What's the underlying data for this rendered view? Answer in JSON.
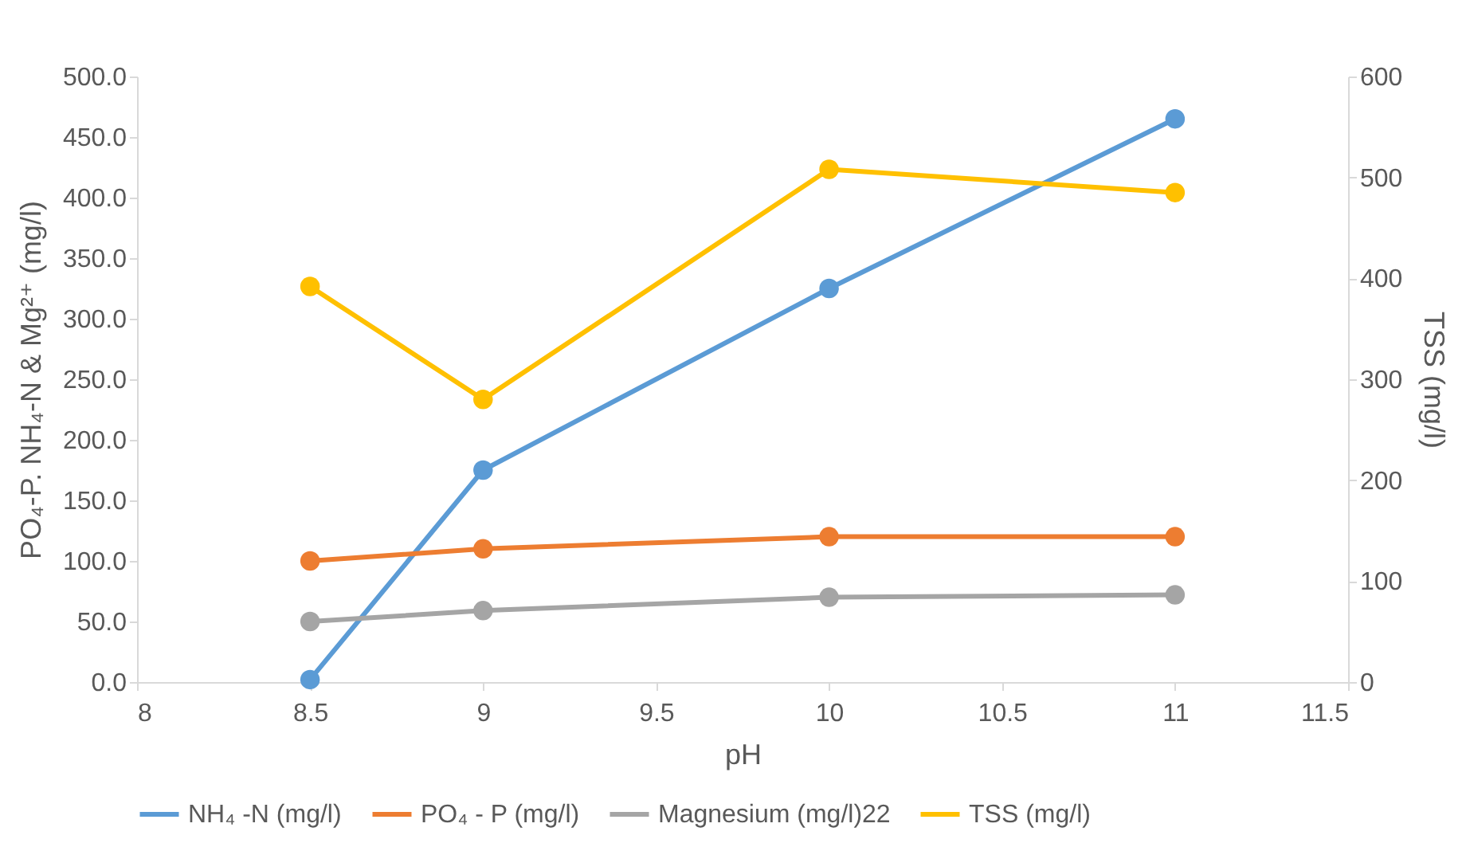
{
  "chart_data": {
    "type": "line",
    "xlabel": "pH",
    "ylabel": "PO₄-P. NH₄-N & Mg²⁺ (mg/l)",
    "y2label": "TSS (mg/l)",
    "x": [
      8.5,
      9,
      10,
      11
    ],
    "series": [
      {
        "name": "NH₄ -N (mg/l)",
        "color": "#5b9bd5",
        "values": [
          2,
          175,
          325,
          465
        ]
      },
      {
        "name": "PO₄ - P (mg/l)",
        "color": "#ed7d31",
        "values": [
          100,
          110,
          120,
          120
        ]
      },
      {
        "name": "Magnesium (mg/l)22",
        "color": "#a5a5a5",
        "values": [
          50,
          59,
          70,
          72
        ]
      },
      {
        "name": "TSS (mg/l)",
        "color": "#ffc000",
        "values": [
          392,
          280,
          508,
          485
        ],
        "axis": "y2"
      }
    ],
    "xlim": [
      8,
      11.5
    ],
    "xticks": [
      8,
      8.5,
      9,
      9.5,
      10,
      10.5,
      11,
      11.5
    ],
    "ylim": [
      0,
      500
    ],
    "yticks": [
      {
        "value": 0,
        "label": "0.0"
      },
      {
        "value": 50,
        "label": "50.0"
      },
      {
        "value": 100,
        "label": "100.0"
      },
      {
        "value": 150,
        "label": "150.0"
      },
      {
        "value": 200,
        "label": "200.0"
      },
      {
        "value": 250,
        "label": "250.0"
      },
      {
        "value": 300,
        "label": "300.0"
      },
      {
        "value": 350,
        "label": "350.0"
      },
      {
        "value": 400,
        "label": "400.0"
      },
      {
        "value": 450,
        "label": "450.0"
      },
      {
        "value": 500,
        "label": "500.0"
      }
    ],
    "y2lim": [
      0,
      600
    ],
    "y2ticks": [
      0,
      100,
      200,
      300,
      400,
      500,
      600
    ],
    "legend": "bottom",
    "marker": "circle",
    "line_style": "solid",
    "grid": false
  }
}
